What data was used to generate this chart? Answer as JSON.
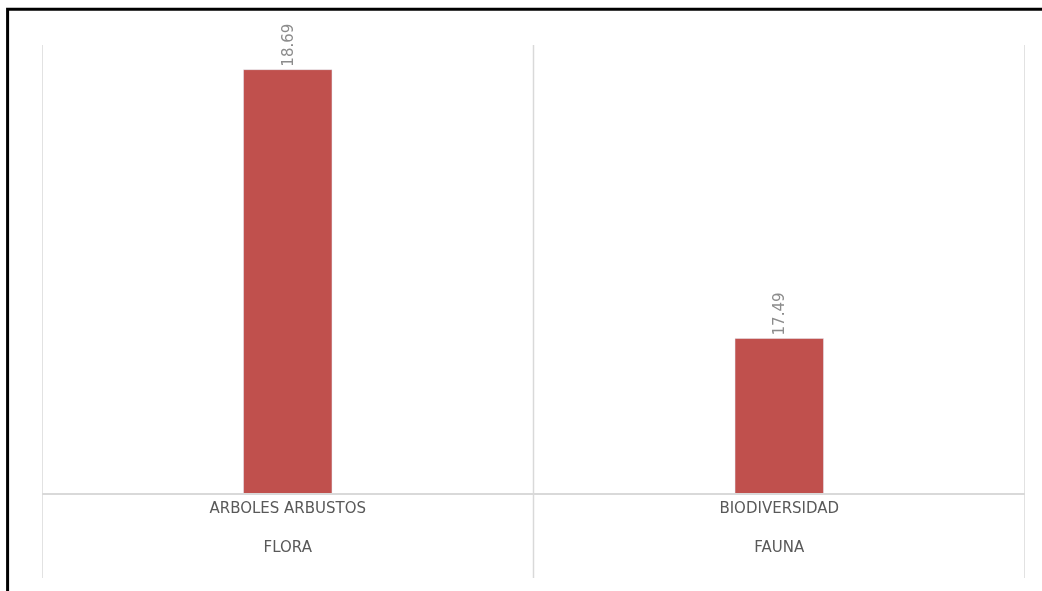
{
  "chart_data": {
    "type": "bar",
    "categories": [
      "ARBOLES ARBUSTOS\nFLORA",
      "BIODIVERSIDAD\nFAUNA"
    ],
    "values": [
      18.69,
      17.49
    ],
    "color": "#c0504d",
    "ylim": [
      16.8,
      18.8
    ],
    "tick_labels": "x",
    "data_labels": true,
    "legend": false
  }
}
